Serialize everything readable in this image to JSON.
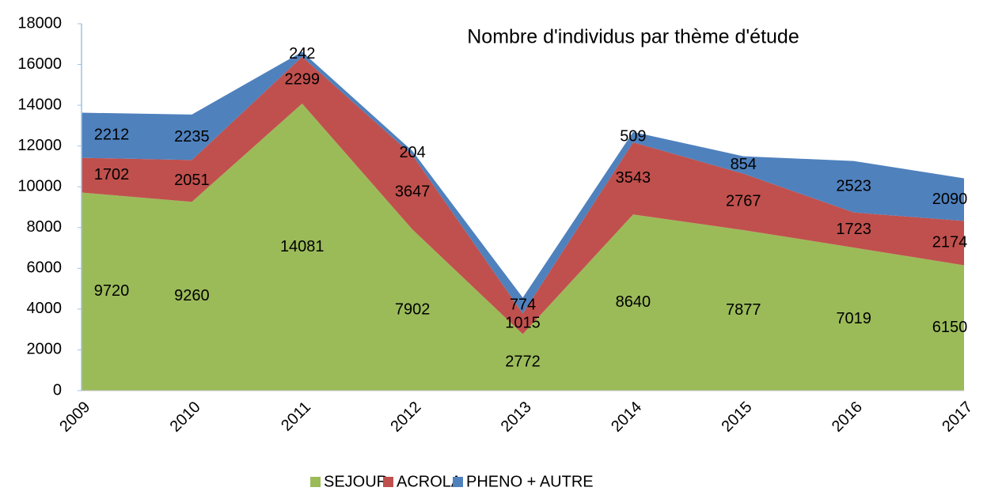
{
  "chart_data": {
    "type": "stacked_area",
    "title": "Nombre d'individus par thème d'étude",
    "categories": [
      "2009",
      "2010",
      "2011",
      "2012",
      "2013",
      "2014",
      "2015",
      "2016",
      "2017"
    ],
    "series": [
      {
        "name": "SEJOUR",
        "color": "#9bbb59",
        "values": [
          9720,
          9260,
          14081,
          7902,
          2772,
          8640,
          7877,
          7019,
          6150
        ]
      },
      {
        "name": "ACROLA",
        "color": "#c0504d",
        "values": [
          1702,
          2051,
          2299,
          3647,
          1015,
          3543,
          2767,
          1723,
          2174
        ]
      },
      {
        "name": "PHENO + AUTRE",
        "color": "#4f81bd",
        "values": [
          2212,
          2235,
          242,
          204,
          774,
          509,
          854,
          2523,
          2090
        ]
      }
    ],
    "ylim": [
      0,
      18000
    ],
    "yticks": [
      0,
      2000,
      4000,
      6000,
      8000,
      10000,
      12000,
      14000,
      16000,
      18000
    ],
    "legend": "bottom"
  }
}
